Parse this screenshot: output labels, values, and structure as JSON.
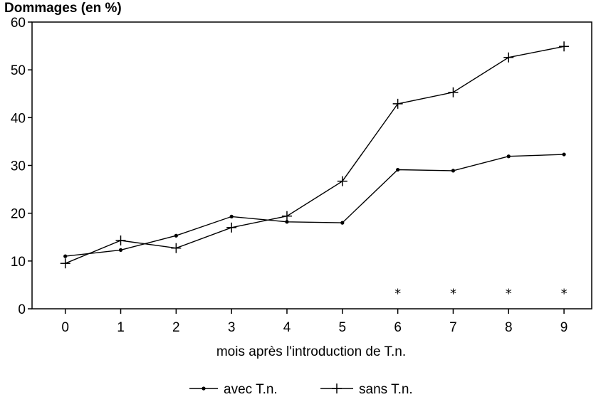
{
  "chart_data": {
    "type": "line",
    "title": "Dommages (en %)",
    "xlabel": "mois après l'introduction de T.n.",
    "ylabel": "Dommages (en %)",
    "x": [
      0,
      1,
      2,
      3,
      4,
      5,
      6,
      7,
      8,
      9
    ],
    "x_ticks": [
      "0",
      "1",
      "2",
      "3",
      "4",
      "5",
      "6",
      "7",
      "8",
      "9"
    ],
    "y_ticks": [
      "0",
      "10",
      "20",
      "30",
      "40",
      "50",
      "60"
    ],
    "xlim": [
      -0.6,
      9.5
    ],
    "ylim": [
      0,
      60
    ],
    "grid": false,
    "legend_position": "bottom",
    "series": [
      {
        "name": "avec T.n.",
        "marker": "dot",
        "values": [
          11.0,
          12.3,
          15.3,
          19.3,
          18.2,
          18.0,
          29.1,
          28.9,
          31.9,
          32.3
        ]
      },
      {
        "name": "sans T.n.",
        "marker": "plus",
        "values": [
          9.5,
          14.3,
          12.7,
          17.0,
          19.4,
          26.7,
          42.9,
          45.3,
          52.6,
          54.9
        ]
      }
    ],
    "annotations": [
      {
        "x": 6,
        "y": 3.5,
        "text": "*"
      },
      {
        "x": 7,
        "y": 3.5,
        "text": "*"
      },
      {
        "x": 8,
        "y": 3.5,
        "text": "*"
      },
      {
        "x": 9,
        "y": 3.5,
        "text": "*"
      }
    ]
  }
}
